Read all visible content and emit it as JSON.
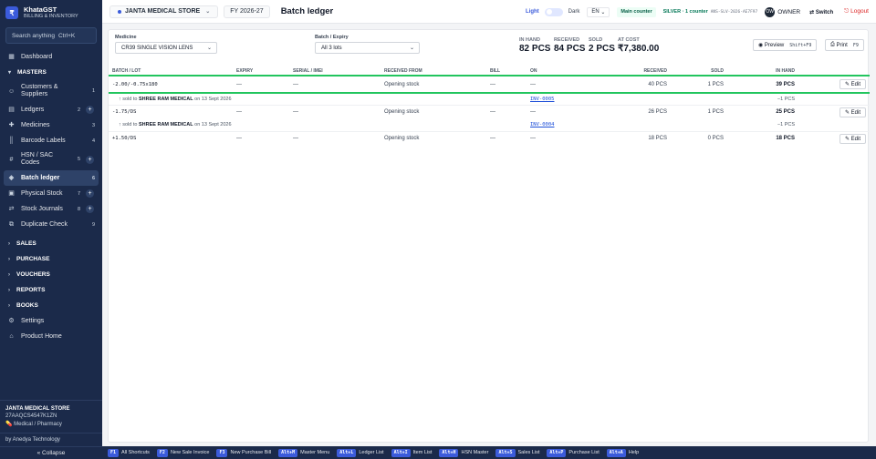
{
  "app": {
    "logo": "₹",
    "name": "KhataGST",
    "subtitle": "BILLING & INVENTORY"
  },
  "search": {
    "placeholder": "Search anything",
    "shortcut": "Ctrl+K"
  },
  "sidebar": {
    "items": [
      {
        "label": "Dashboard"
      },
      {
        "section": "MASTERS"
      },
      {
        "label": "Customers & Suppliers",
        "count": "1"
      },
      {
        "label": "Ledgers",
        "count": "2"
      },
      {
        "label": "Medicines",
        "count": "3"
      },
      {
        "label": "Barcode Labels",
        "count": "4"
      },
      {
        "label": "HSN / SAC Codes",
        "count": "5"
      },
      {
        "label": "Batch ledger",
        "count": "6"
      },
      {
        "label": "Physical Stock",
        "count": "7"
      },
      {
        "label": "Stock Journals",
        "count": "8"
      },
      {
        "label": "Duplicate Check",
        "count": "9"
      },
      {
        "section": "SALES"
      },
      {
        "section": "PURCHASE"
      },
      {
        "section": "VOUCHERS"
      },
      {
        "section": "REPORTS"
      },
      {
        "section": "BOOKS"
      },
      {
        "label": "Settings"
      },
      {
        "label": "Product Home"
      }
    ],
    "company": {
      "name": "JANTA MEDICAL STORE",
      "gstin": "27AAQCS4547K1ZN",
      "type": "Medical / Pharmacy"
    },
    "vendor": "by Anedya Technology",
    "collapse": "« Collapse"
  },
  "topbar": {
    "store": "JANTA MEDICAL STORE",
    "fy": "FY 2026-27",
    "title": "Batch ledger",
    "theme_light": "Light",
    "theme_dark": "Dark",
    "lang": "EN",
    "counter": "Main counter",
    "plan": "SILVER · 1 counter",
    "plan_code": "ANS-SLV-2026-AE7F97",
    "avatar": "OW",
    "user": "OWNER",
    "switch": "⇄ Switch",
    "logout": "⎋ Logout"
  },
  "filters": {
    "medicine_label": "Medicine",
    "medicine_value": "CR39 SINGLE VISION LENS",
    "batch_label": "Batch / Expiry",
    "batch_value": "All 3 lots"
  },
  "stats": [
    {
      "label": "IN HAND",
      "value": "82 PCS"
    },
    {
      "label": "RECEIVED",
      "value": "84 PCS"
    },
    {
      "label": "SOLD",
      "value": "2 PCS"
    },
    {
      "label": "AT COST",
      "value": "₹7,380.00"
    }
  ],
  "actions": {
    "preview": "Preview",
    "preview_key": "Shift+F9",
    "print": "Print",
    "print_key": "F9"
  },
  "table": {
    "headers": [
      "BATCH / LOT",
      "EXPIRY",
      "SERIAL / IMEI",
      "RECEIVED FROM",
      "BILL",
      "ON",
      "RECEIVED",
      "SOLD",
      "IN HAND",
      ""
    ],
    "rows": [
      {
        "batch": "-2.00/-0.75x180",
        "expiry": "—",
        "serial": "—",
        "from": "Opening stock",
        "bill": "—",
        "on": "—",
        "received": "40 PCS",
        "sold": "1 PCS",
        "in_hand": "39 PCS",
        "edit": "✎ Edit",
        "sale": {
          "prefix": "↑ sold to",
          "party": "SHREE RAM MEDICAL",
          "on_word": "on",
          "date": "13 Sept 2026",
          "invoice": "INV-0005",
          "qty": "−1 PCS"
        }
      },
      {
        "batch": "-1.75/DS",
        "expiry": "—",
        "serial": "—",
        "from": "Opening stock",
        "bill": "—",
        "on": "—",
        "received": "26 PCS",
        "sold": "1 PCS",
        "in_hand": "25 PCS",
        "edit": "✎ Edit",
        "sale": {
          "prefix": "↑ sold to",
          "party": "SHREE RAM MEDICAL",
          "on_word": "on",
          "date": "13 Sept 2026",
          "invoice": "INV-0004",
          "qty": "−1 PCS"
        }
      },
      {
        "batch": "+1.50/DS",
        "expiry": "—",
        "serial": "—",
        "from": "Opening stock",
        "bill": "—",
        "on": "—",
        "received": "18 PCS",
        "sold": "0 PCS",
        "in_hand": "18 PCS",
        "edit": "✎ Edit"
      }
    ]
  },
  "shortcuts": [
    {
      "key": "F1",
      "label": "All Shortcuts"
    },
    {
      "key": "F2",
      "label": "New Sale Invoice"
    },
    {
      "key": "F3",
      "label": "New Purchase Bill"
    },
    {
      "key": "Alt+M",
      "label": "Master Menu"
    },
    {
      "key": "Alt+L",
      "label": "Ledger List"
    },
    {
      "key": "Alt+I",
      "label": "Item List"
    },
    {
      "key": "Alt+H",
      "label": "HSN Master"
    },
    {
      "key": "Alt+S",
      "label": "Sales List"
    },
    {
      "key": "Alt+P",
      "label": "Purchase List"
    },
    {
      "key": "Alt+A",
      "label": "Help"
    }
  ],
  "colors": {
    "sidebar": "#1b2a4a",
    "accent": "#3b5bdb",
    "selected_row": "#22c55e",
    "logout": "#dc2626"
  }
}
